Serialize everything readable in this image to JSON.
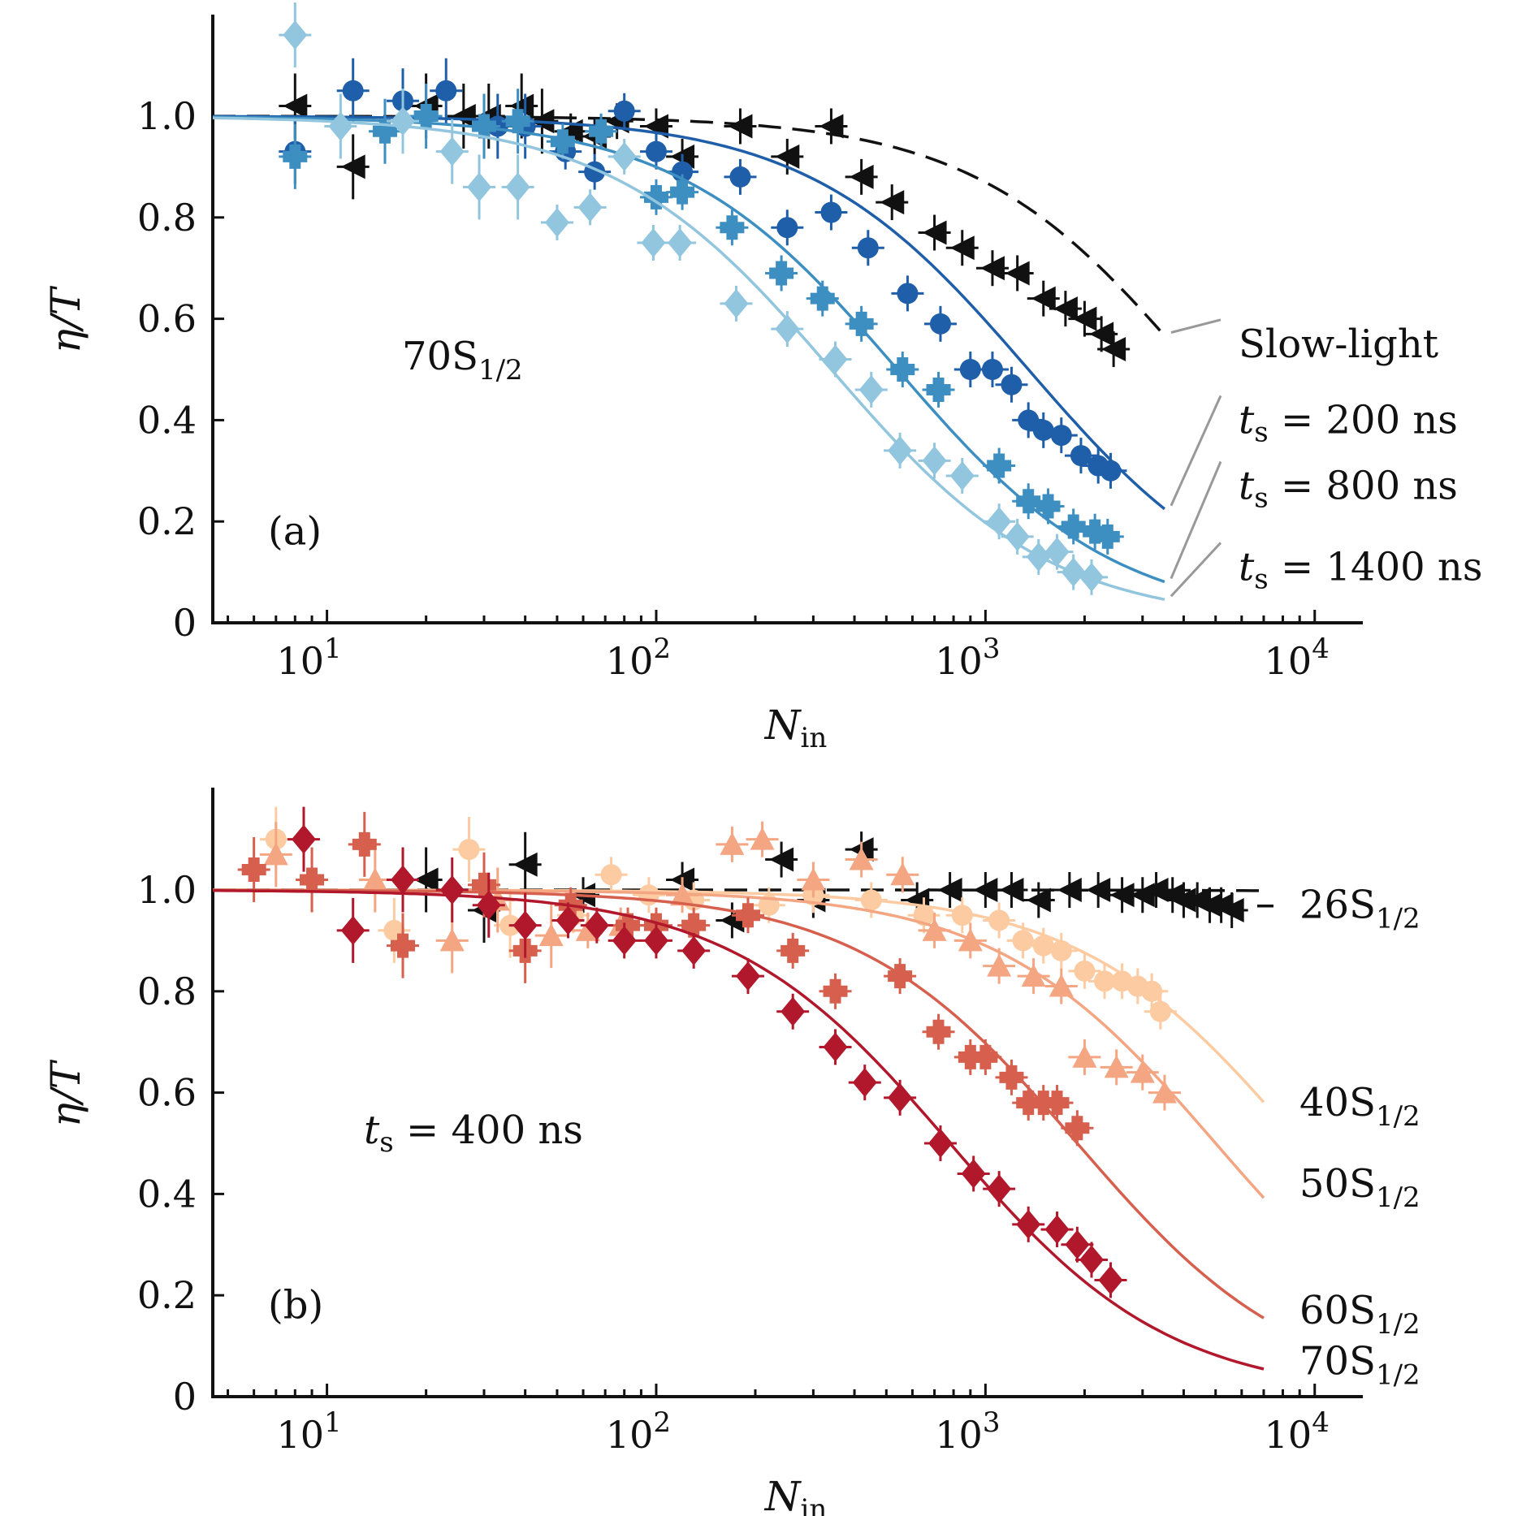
{
  "chart_data": [
    {
      "panel_label": "(a)",
      "type": "scatter",
      "xscale": "log",
      "xlabel_main": "N",
      "xlabel_sub": "in",
      "ylabel": "η/T",
      "xlim": [
        4.5,
        14000
      ],
      "ylim": [
        0,
        1.2
      ],
      "x_ticks": [
        {
          "value": 10,
          "base": "10",
          "exp": "1"
        },
        {
          "value": 100,
          "base": "10",
          "exp": "2"
        },
        {
          "value": 1000,
          "base": "10",
          "exp": "3"
        },
        {
          "value": 10000,
          "base": "10",
          "exp": "4"
        }
      ],
      "y_ticks": [
        {
          "value": 0,
          "label": "0"
        },
        {
          "value": 0.2,
          "label": "0.2"
        },
        {
          "value": 0.4,
          "label": "0.4"
        },
        {
          "value": 0.6,
          "label": "0.6"
        },
        {
          "value": 0.8,
          "label": "0.8"
        },
        {
          "value": 1.0,
          "label": "1.0"
        }
      ],
      "state_main": "70S",
      "state_sub": "1/2",
      "series": [
        {
          "label_parts": [
            "Slow-light"
          ],
          "color": "#111111",
          "marker": "triangle-left",
          "fit": "dashed",
          "fit_n0": 4300,
          "fit_end": 3500,
          "label_y": 0.55,
          "points": [
            [
              8,
              1.02
            ],
            [
              12,
              0.9
            ],
            [
              20,
              1.02
            ],
            [
              26,
              1.0
            ],
            [
              31,
              1.0
            ],
            [
              39,
              1.02
            ],
            [
              45,
              0.99
            ],
            [
              55,
              0.97
            ],
            [
              65,
              0.96
            ],
            [
              76,
              0.99
            ],
            [
              100,
              0.98
            ],
            [
              120,
              0.92
            ],
            [
              180,
              0.98
            ],
            [
              250,
              0.92
            ],
            [
              340,
              0.98
            ],
            [
              420,
              0.88
            ],
            [
              520,
              0.83
            ],
            [
              700,
              0.77
            ],
            [
              850,
              0.74
            ],
            [
              1050,
              0.7
            ],
            [
              1250,
              0.69
            ],
            [
              1500,
              0.64
            ],
            [
              1750,
              0.62
            ],
            [
              2000,
              0.6
            ],
            [
              2250,
              0.57
            ],
            [
              2450,
              0.54
            ]
          ]
        },
        {
          "label_parts": [
            "t",
            "s",
            " = 200 ns"
          ],
          "color": "#1f5ea8",
          "marker": "circle",
          "fit": "solid",
          "fit_n0": 1350,
          "fit_end": 3500,
          "label_y": 0.4,
          "points": [
            [
              8,
              0.93
            ],
            [
              12,
              1.05
            ],
            [
              17,
              1.03
            ],
            [
              23,
              1.05
            ],
            [
              33,
              0.98
            ],
            [
              40,
              0.98
            ],
            [
              53,
              0.93
            ],
            [
              65,
              0.89
            ],
            [
              80,
              1.01
            ],
            [
              100,
              0.93
            ],
            [
              120,
              0.89
            ],
            [
              180,
              0.88
            ],
            [
              250,
              0.78
            ],
            [
              340,
              0.81
            ],
            [
              440,
              0.74
            ],
            [
              580,
              0.65
            ],
            [
              730,
              0.59
            ],
            [
              900,
              0.5
            ],
            [
              1050,
              0.5
            ],
            [
              1200,
              0.47
            ],
            [
              1350,
              0.4
            ],
            [
              1500,
              0.38
            ],
            [
              1700,
              0.37
            ],
            [
              1950,
              0.33
            ],
            [
              2200,
              0.31
            ],
            [
              2400,
              0.3
            ]
          ]
        },
        {
          "label_parts": [
            "t",
            "s",
            " = 800 ns"
          ],
          "color": "#3d8fc2",
          "marker": "cross",
          "fit": "solid",
          "fit_n0": 540,
          "fit_end": 3500,
          "label_y": 0.27,
          "points": [
            [
              8,
              0.92
            ],
            [
              15,
              0.97
            ],
            [
              20,
              1.0
            ],
            [
              30,
              0.98
            ],
            [
              38,
              0.99
            ],
            [
              52,
              0.95
            ],
            [
              68,
              0.97
            ],
            [
              100,
              0.84
            ],
            [
              120,
              0.85
            ],
            [
              170,
              0.78
            ],
            [
              240,
              0.69
            ],
            [
              320,
              0.64
            ],
            [
              420,
              0.59
            ],
            [
              560,
              0.5
            ],
            [
              720,
              0.46
            ],
            [
              1100,
              0.31
            ],
            [
              1350,
              0.24
            ],
            [
              1550,
              0.23
            ],
            [
              1850,
              0.19
            ],
            [
              2150,
              0.18
            ],
            [
              2350,
              0.17
            ]
          ]
        },
        {
          "label_parts": [
            "t",
            "s",
            " = 1400 ns"
          ],
          "color": "#92c5de",
          "marker": "diamond",
          "fit": "solid",
          "fit_n0": 340,
          "fit_end": 3500,
          "label_y": 0.11,
          "points": [
            [
              8,
              1.16
            ],
            [
              11,
              0.98
            ],
            [
              17,
              0.99
            ],
            [
              24,
              0.93
            ],
            [
              29,
              0.86
            ],
            [
              38,
              0.86
            ],
            [
              50,
              0.79
            ],
            [
              63,
              0.82
            ],
            [
              80,
              0.92
            ],
            [
              98,
              0.75
            ],
            [
              118,
              0.75
            ],
            [
              175,
              0.63
            ],
            [
              250,
              0.58
            ],
            [
              350,
              0.52
            ],
            [
              450,
              0.46
            ],
            [
              550,
              0.34
            ],
            [
              700,
              0.32
            ],
            [
              850,
              0.29
            ],
            [
              1100,
              0.2
            ],
            [
              1250,
              0.17
            ],
            [
              1450,
              0.13
            ],
            [
              1650,
              0.14
            ],
            [
              1850,
              0.1
            ],
            [
              2100,
              0.09
            ]
          ]
        }
      ]
    },
    {
      "panel_label": "(b)",
      "type": "scatter",
      "xscale": "log",
      "xlabel_main": "N",
      "xlabel_sub": "in",
      "ylabel": "η/T",
      "xlim": [
        4.5,
        14000
      ],
      "ylim": [
        0,
        1.2
      ],
      "x_ticks": [
        {
          "value": 10,
          "base": "10",
          "exp": "1"
        },
        {
          "value": 100,
          "base": "10",
          "exp": "2"
        },
        {
          "value": 1000,
          "base": "10",
          "exp": "3"
        },
        {
          "value": 10000,
          "base": "10",
          "exp": "4"
        }
      ],
      "y_ticks": [
        {
          "value": 0,
          "label": "0"
        },
        {
          "value": 0.2,
          "label": "0.2"
        },
        {
          "value": 0.4,
          "label": "0.4"
        },
        {
          "value": 0.6,
          "label": "0.6"
        },
        {
          "value": 0.8,
          "label": "0.8"
        },
        {
          "value": 1.0,
          "label": "1.0"
        }
      ],
      "time_parts": [
        "t",
        "s",
        " = 400 ns"
      ],
      "series": [
        {
          "label_parts": [
            "26S",
            "1/2"
          ],
          "color": "#111111",
          "marker": "triangle-left",
          "fit": "dashed",
          "fit_n0": 1000000,
          "fit_end": 7000,
          "label_y": 0.97,
          "points": [
            [
              20,
              1.02
            ],
            [
              30,
              0.96
            ],
            [
              40,
              1.05
            ],
            [
              60,
              0.99
            ],
            [
              120,
              1.02
            ],
            [
              170,
              0.94
            ],
            [
              240,
              1.06
            ],
            [
              300,
              0.98
            ],
            [
              420,
              1.08
            ],
            [
              620,
              0.98
            ],
            [
              780,
              1.0
            ],
            [
              1000,
              1.0
            ],
            [
              1200,
              1.0
            ],
            [
              1450,
              0.98
            ],
            [
              1800,
              1.0
            ],
            [
              2200,
              1.0
            ],
            [
              2600,
              0.99
            ],
            [
              3000,
              0.99
            ],
            [
              3300,
              1.0
            ],
            [
              3700,
              0.99
            ],
            [
              4000,
              0.98
            ],
            [
              4400,
              0.98
            ],
            [
              4800,
              0.97
            ],
            [
              5200,
              0.97
            ],
            [
              5600,
              0.96
            ]
          ]
        },
        {
          "label_parts": [
            "40S",
            "1/2"
          ],
          "color": "#fdcba1",
          "marker": "circle",
          "fit": "solid",
          "fit_n0": 9000,
          "fit_end": 7000,
          "label_y": 0.58,
          "points": [
            [
              7,
              1.1
            ],
            [
              16,
              0.92
            ],
            [
              27,
              1.08
            ],
            [
              36,
              0.93
            ],
            [
              56,
              0.95
            ],
            [
              73,
              1.03
            ],
            [
              95,
              0.99
            ],
            [
              130,
              0.98
            ],
            [
              220,
              0.97
            ],
            [
              300,
              0.99
            ],
            [
              450,
              0.98
            ],
            [
              650,
              0.95
            ],
            [
              850,
              0.95
            ],
            [
              1100,
              0.94
            ],
            [
              1300,
              0.9
            ],
            [
              1500,
              0.89
            ],
            [
              1700,
              0.88
            ],
            [
              2000,
              0.84
            ],
            [
              2300,
              0.82
            ],
            [
              2600,
              0.82
            ],
            [
              2900,
              0.81
            ],
            [
              3200,
              0.8
            ],
            [
              3400,
              0.76
            ]
          ]
        },
        {
          "label_parts": [
            "50S",
            "1/2"
          ],
          "color": "#f4a582",
          "marker": "triangle-up",
          "fit": "solid",
          "fit_n0": 5000,
          "fit_end": 7000,
          "label_y": 0.42,
          "points": [
            [
              7,
              1.07
            ],
            [
              14,
              1.02
            ],
            [
              24,
              0.9
            ],
            [
              33,
              0.98
            ],
            [
              48,
              0.91
            ],
            [
              62,
              0.92
            ],
            [
              78,
              0.93
            ],
            [
              120,
              0.99
            ],
            [
              170,
              1.09
            ],
            [
              210,
              1.1
            ],
            [
              300,
              1.02
            ],
            [
              420,
              1.06
            ],
            [
              560,
              1.03
            ],
            [
              700,
              0.92
            ],
            [
              900,
              0.9
            ],
            [
              1100,
              0.85
            ],
            [
              1400,
              0.83
            ],
            [
              1700,
              0.81
            ],
            [
              2000,
              0.67
            ],
            [
              2500,
              0.65
            ],
            [
              3000,
              0.64
            ],
            [
              3500,
              0.6
            ]
          ]
        },
        {
          "label_parts": [
            "60S",
            "1/2"
          ],
          "color": "#d6604d",
          "marker": "cross",
          "fit": "solid",
          "fit_n0": 1900,
          "fit_end": 7000,
          "label_y": 0.17,
          "points": [
            [
              6,
              1.04
            ],
            [
              9,
              1.02
            ],
            [
              13,
              1.09
            ],
            [
              17,
              0.89
            ],
            [
              30,
              1.01
            ],
            [
              40,
              0.88
            ],
            [
              55,
              0.97
            ],
            [
              82,
              0.93
            ],
            [
              100,
              0.93
            ],
            [
              130,
              0.93
            ],
            [
              190,
              0.95
            ],
            [
              260,
              0.88
            ],
            [
              350,
              0.8
            ],
            [
              550,
              0.83
            ],
            [
              720,
              0.72
            ],
            [
              900,
              0.67
            ],
            [
              1000,
              0.67
            ],
            [
              1200,
              0.63
            ],
            [
              1350,
              0.58
            ],
            [
              1500,
              0.58
            ],
            [
              1650,
              0.58
            ],
            [
              1900,
              0.53
            ]
          ]
        },
        {
          "label_parts": [
            "70S",
            "1/2"
          ],
          "color": "#b2182b",
          "marker": "diamond",
          "fit": "solid",
          "fit_n0": 780,
          "fit_end": 7000,
          "label_y": 0.07,
          "points": [
            [
              8.5,
              1.1
            ],
            [
              12,
              0.92
            ],
            [
              17,
              1.02
            ],
            [
              24,
              1.0
            ],
            [
              31,
              0.97
            ],
            [
              40,
              0.93
            ],
            [
              54,
              0.94
            ],
            [
              66,
              0.93
            ],
            [
              80,
              0.9
            ],
            [
              100,
              0.9
            ],
            [
              130,
              0.88
            ],
            [
              190,
              0.83
            ],
            [
              260,
              0.76
            ],
            [
              350,
              0.69
            ],
            [
              430,
              0.62
            ],
            [
              550,
              0.59
            ],
            [
              730,
              0.5
            ],
            [
              920,
              0.44
            ],
            [
              1100,
              0.41
            ],
            [
              1350,
              0.34
            ],
            [
              1650,
              0.33
            ],
            [
              1900,
              0.3
            ],
            [
              2100,
              0.27
            ],
            [
              2400,
              0.23
            ]
          ]
        }
      ]
    }
  ]
}
